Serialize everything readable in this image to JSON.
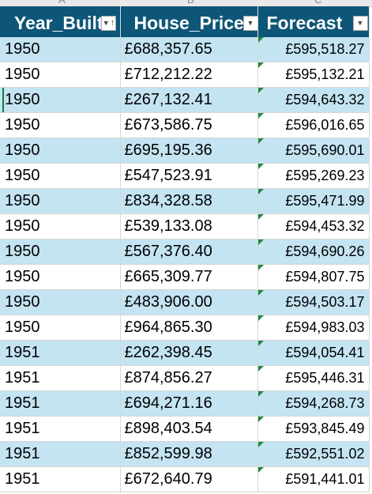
{
  "column_letters": [
    "A",
    "B",
    "C"
  ],
  "headers": {
    "year_built": "Year_Built",
    "house_price": "House_Price",
    "forecast": "Forecast"
  },
  "icons": {
    "filter": "dropdown-filter-icon",
    "sort": "sort-ascending-icon"
  },
  "colors": {
    "header_bg": "#0e5677",
    "band_bg": "#c4e4f2",
    "indicator": "#1e8a3c"
  },
  "rows": [
    {
      "year": "1950",
      "price": "£688,357.65",
      "forecast": "£595,518.27"
    },
    {
      "year": "1950",
      "price": "£712,212.22",
      "forecast": "£595,132.21"
    },
    {
      "year": "1950",
      "price": "£267,132.41",
      "forecast": "£594,643.32"
    },
    {
      "year": "1950",
      "price": "£673,586.75",
      "forecast": "£596,016.65"
    },
    {
      "year": "1950",
      "price": "£695,195.36",
      "forecast": "£595,690.01"
    },
    {
      "year": "1950",
      "price": "£547,523.91",
      "forecast": "£595,269.23"
    },
    {
      "year": "1950",
      "price": "£834,328.58",
      "forecast": "£595,471.99"
    },
    {
      "year": "1950",
      "price": "£539,133.08",
      "forecast": "£594,453.32"
    },
    {
      "year": "1950",
      "price": "£567,376.40",
      "forecast": "£594,690.26"
    },
    {
      "year": "1950",
      "price": "£665,309.77",
      "forecast": "£594,807.75"
    },
    {
      "year": "1950",
      "price": "£483,906.00",
      "forecast": "£594,503.17"
    },
    {
      "year": "1950",
      "price": "£964,865.30",
      "forecast": "£594,983.03"
    },
    {
      "year": "1951",
      "price": "£262,398.45",
      "forecast": "£594,054.41"
    },
    {
      "year": "1951",
      "price": "£874,856.27",
      "forecast": "£595,446.31"
    },
    {
      "year": "1951",
      "price": "£694,271.16",
      "forecast": "£594,268.73"
    },
    {
      "year": "1951",
      "price": "£898,403.54",
      "forecast": "£593,845.49"
    },
    {
      "year": "1951",
      "price": "£852,599.98",
      "forecast": "£592,551.02"
    },
    {
      "year": "1951",
      "price": "£672,640.79",
      "forecast": "£591,441.01"
    }
  ]
}
